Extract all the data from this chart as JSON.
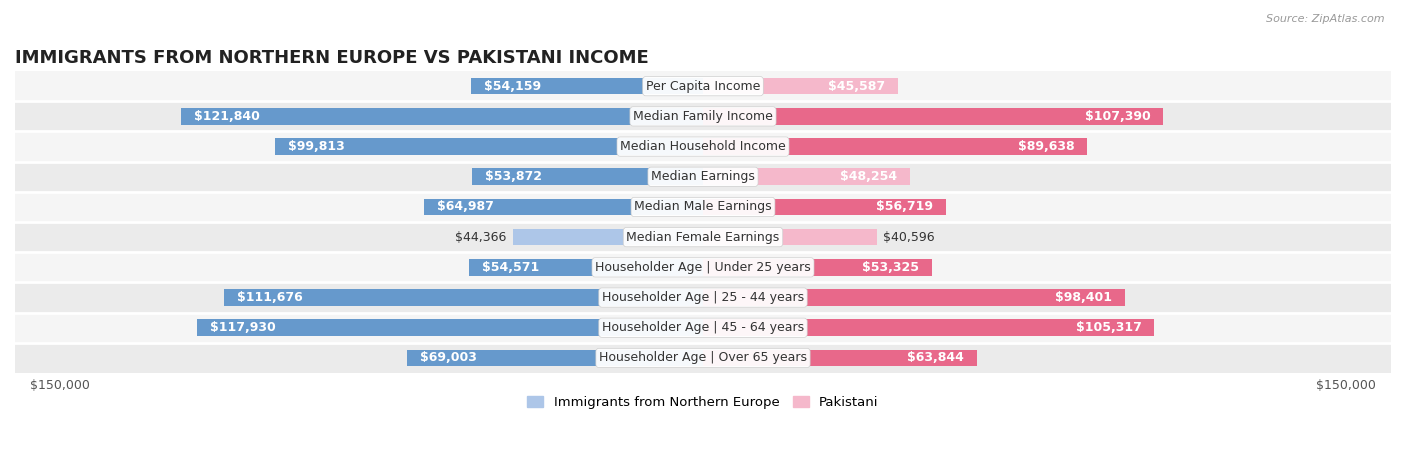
{
  "title": "IMMIGRANTS FROM NORTHERN EUROPE VS PAKISTANI INCOME",
  "source": "Source: ZipAtlas.com",
  "categories": [
    "Per Capita Income",
    "Median Family Income",
    "Median Household Income",
    "Median Earnings",
    "Median Male Earnings",
    "Median Female Earnings",
    "Householder Age | Under 25 years",
    "Householder Age | 25 - 44 years",
    "Householder Age | 45 - 64 years",
    "Householder Age | Over 65 years"
  ],
  "northern_europe": [
    54159,
    121840,
    99813,
    53872,
    64987,
    44366,
    54571,
    111676,
    117930,
    69003
  ],
  "pakistani": [
    45587,
    107390,
    89638,
    48254,
    56719,
    40596,
    53325,
    98401,
    105317,
    63844
  ],
  "max_value": 150000,
  "blue_light": "#adc6e8",
  "blue_dark": "#6699cc",
  "pink_light": "#f5b8cb",
  "pink_dark": "#e8688a",
  "row_bg_odd": "#f5f5f5",
  "row_bg_even": "#ebebeb",
  "bar_height": 0.55,
  "label_fontsize": 9.0,
  "title_fontsize": 13,
  "legend_fontsize": 9.5,
  "axis_label_fontsize": 9,
  "inside_label_threshold": 0.3
}
